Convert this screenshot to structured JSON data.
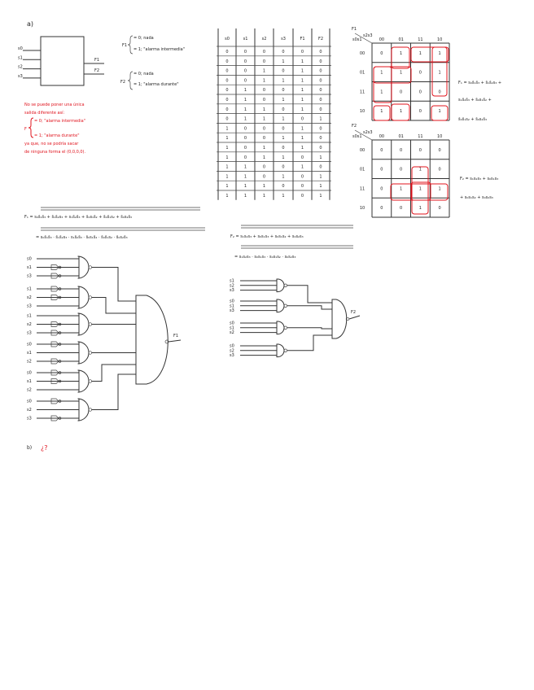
{
  "part_a": {
    "label": "a)",
    "block": {
      "inputs": [
        "s0",
        "s1",
        "s2",
        "s3"
      ],
      "outputs": [
        "F1",
        "F2"
      ]
    },
    "f1_def": {
      "name": "F1",
      "cases": [
        "= 0; nada",
        "= 1; \"alarma intermedia\""
      ]
    },
    "f2_def": {
      "name": "F2",
      "cases": [
        "= 0; nada",
        "= 1; \"alarma durante\""
      ]
    },
    "note": {
      "lines_before": [
        "No se puede poner una única",
        "salida diferente así:"
      ],
      "brace_name": "F",
      "cases": [
        "= 0; \"alarma intermedia\"",
        "= 1; \"alarma durante\""
      ],
      "lines_after": [
        "ya que, no se podría sacar",
        "de ninguna forma el (0,0,0,0)."
      ],
      "color": "#e0141e"
    },
    "truth_table": {
      "headers": [
        "s0",
        "s1",
        "s2",
        "s3",
        "F1",
        "F2"
      ],
      "rows": [
        [
          "0",
          "0",
          "0",
          "0",
          "0",
          "0"
        ],
        [
          "0",
          "0",
          "0",
          "1",
          "1",
          "0"
        ],
        [
          "0",
          "0",
          "1",
          "0",
          "1",
          "0"
        ],
        [
          "0",
          "0",
          "1",
          "1",
          "1",
          "0"
        ],
        [
          "0",
          "1",
          "0",
          "0",
          "1",
          "0"
        ],
        [
          "0",
          "1",
          "0",
          "1",
          "1",
          "0"
        ],
        [
          "0",
          "1",
          "1",
          "0",
          "1",
          "0"
        ],
        [
          "0",
          "1",
          "1",
          "1",
          "0",
          "1"
        ],
        [
          "1",
          "0",
          "0",
          "0",
          "1",
          "0"
        ],
        [
          "1",
          "0",
          "0",
          "1",
          "1",
          "0"
        ],
        [
          "1",
          "0",
          "1",
          "0",
          "1",
          "0"
        ],
        [
          "1",
          "0",
          "1",
          "1",
          "0",
          "1"
        ],
        [
          "1",
          "1",
          "0",
          "0",
          "1",
          "0"
        ],
        [
          "1",
          "1",
          "0",
          "1",
          "0",
          "1"
        ],
        [
          "1",
          "1",
          "1",
          "0",
          "0",
          "1"
        ],
        [
          "1",
          "1",
          "1",
          "1",
          "0",
          "1"
        ]
      ]
    },
    "kmaps": [
      {
        "name": "F1",
        "row_var": "s0s1",
        "col_var": "s2s3",
        "col_labels": [
          "00",
          "01",
          "11",
          "10"
        ],
        "row_labels": [
          "00",
          "01",
          "11",
          "10"
        ],
        "cells": [
          [
            "0",
            "1",
            "1",
            "1"
          ],
          [
            "1",
            "1",
            "0",
            "1"
          ],
          [
            "1",
            "0",
            "0",
            "0"
          ],
          [
            "1",
            "1",
            "0",
            "1"
          ]
        ],
        "expression": [
          "F₁ = s₀s̄₁s̄₃ + s̄₁s̄₂s₃ +",
          "s₁s̄₂s̄₃ + s̄₀s₁s̄₂ +",
          "s̄₀s̄₁s₂ + s̄₀s₂s̄₃"
        ]
      },
      {
        "name": "F2",
        "row_var": "s0s1",
        "col_var": "s2s3",
        "col_labels": [
          "00",
          "01",
          "11",
          "10"
        ],
        "row_labels": [
          "00",
          "01",
          "11",
          "10"
        ],
        "cells": [
          [
            "0",
            "0",
            "0",
            "0"
          ],
          [
            "0",
            "0",
            "1",
            "0"
          ],
          [
            "0",
            "1",
            "1",
            "1"
          ],
          [
            "0",
            "0",
            "1",
            "0"
          ]
        ],
        "expression": [
          "F₂ = s₁s₂s₃ + s₀s₁s₃",
          "+ s₀s₁s₂ + s₀s₂s₃"
        ]
      }
    ],
    "nand_forms": {
      "f1_line1": "F₁ = s₀s̄₁s̄₃ + s̄₁s̄₂s₃ + s₁s̄₂s̄₃ + s̄₀s₁s̄₂ + s̄₀s̄₁s₂ + s̄₀s₂s̄₃",
      "f1_line2": "= s₀s̄₁s̄₃ · s̄₁s̄₂s₃ · s₁s̄₂s̄₃ · s̄₀s₁s̄₂ · s̄₀s̄₁s₂ · s̄₀s₂s̄₃",
      "f2_line1": "F₂ = s₁s₂s₃ + s₀s₁s₃ + s₀s₁s₂ + s₀s₂s₃",
      "f2_line2": "= s₁s₂s₃ · s₀s₁s₃ · s₀s₁s₂ · s₀s₂s₃"
    },
    "circuit_f1": {
      "output": "F1",
      "gates": [
        {
          "inputs": [
            "s0",
            "s1",
            "s3"
          ],
          "negated": [
            false,
            true,
            true
          ]
        },
        {
          "inputs": [
            "s1",
            "s2",
            "s3"
          ],
          "negated": [
            true,
            true,
            false
          ]
        },
        {
          "inputs": [
            "s1",
            "s2",
            "s3"
          ],
          "negated": [
            false,
            true,
            true
          ]
        },
        {
          "inputs": [
            "s0",
            "s1",
            "s2"
          ],
          "negated": [
            true,
            false,
            true
          ]
        },
        {
          "inputs": [
            "s0",
            "s1",
            "s2"
          ],
          "negated": [
            true,
            true,
            false
          ]
        },
        {
          "inputs": [
            "s0",
            "s2",
            "s3"
          ],
          "negated": [
            true,
            false,
            true
          ]
        }
      ]
    },
    "circuit_f2": {
      "output": "F2",
      "gates": [
        {
          "inputs": [
            "s1",
            "s2",
            "s3"
          ]
        },
        {
          "inputs": [
            "s0",
            "s1",
            "s3"
          ]
        },
        {
          "inputs": [
            "s0",
            "s1",
            "s2"
          ]
        },
        {
          "inputs": [
            "s0",
            "s2",
            "s3"
          ]
        }
      ]
    }
  },
  "part_b": {
    "label": "b)",
    "answer": "¿?",
    "answer_color": "#e0141e"
  }
}
